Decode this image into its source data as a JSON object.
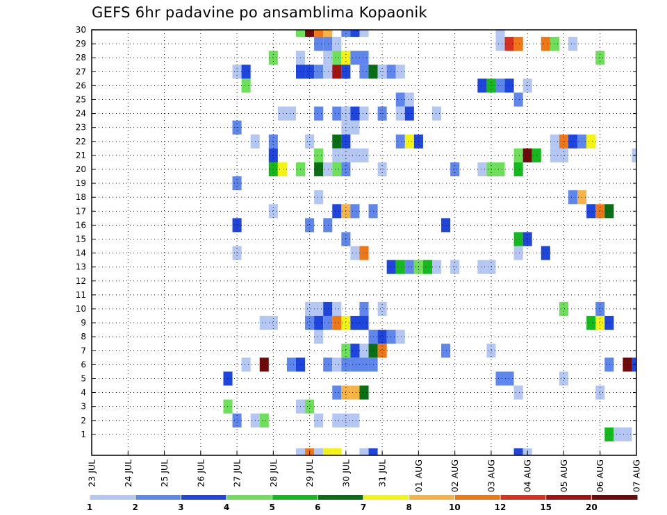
{
  "chart_data": {
    "type": "heatmap",
    "title": "GEFS 6hr padavine po ansamblima Kopaonik",
    "xlabel": "",
    "ylabel": "",
    "x_tick_labels": [
      "23 JUL",
      "24 JUL",
      "25 JUL",
      "26 JUL",
      "27 JUL",
      "28 JUL",
      "29 JUL",
      "30 JUL",
      "31 JUL",
      "01 AUG",
      "02 AUG",
      "03 AUG",
      "04 AUG",
      "05 AUG",
      "06 AUG",
      "07 AUG"
    ],
    "x_range_steps": [
      0,
      60
    ],
    "y_tick_labels": [
      "1",
      "2",
      "3",
      "4",
      "5",
      "6",
      "7",
      "8",
      "9",
      "10",
      "11",
      "12",
      "13",
      "14",
      "15",
      "16",
      "17",
      "18",
      "19",
      "20",
      "21",
      "22",
      "23",
      "24",
      "25",
      "26",
      "27",
      "28",
      "29",
      "30"
    ],
    "y_range": [
      0,
      30
    ],
    "grid": true,
    "colorbar": {
      "ticks": [
        "1",
        "2",
        "3",
        "4",
        "5",
        "6",
        "7",
        "8",
        "10",
        "12",
        "15",
        "20"
      ],
      "colors": [
        "#b4c6f2",
        "#5f86eb",
        "#1e46dc",
        "#6edf5a",
        "#14b91e",
        "#0a6e14",
        "#f4f414",
        "#f7b446",
        "#f07814",
        "#d7321e",
        "#a01414",
        "#6e0a0a"
      ]
    },
    "cells": [
      {
        "t": 23,
        "m": 30,
        "c": 3
      },
      {
        "t": 24,
        "m": 30,
        "c": 11
      },
      {
        "t": 25,
        "m": 30,
        "c": 8
      },
      {
        "t": 26,
        "m": 30,
        "c": 7
      },
      {
        "t": 28,
        "m": 30,
        "c": 1
      },
      {
        "t": 29,
        "m": 30,
        "c": 2
      },
      {
        "t": 30,
        "m": 30,
        "c": 0
      },
      {
        "t": 45,
        "m": 30,
        "c": 0
      },
      {
        "t": 25,
        "m": 29,
        "c": 1
      },
      {
        "t": 26,
        "m": 29,
        "c": 1
      },
      {
        "t": 27,
        "m": 29,
        "c": 0
      },
      {
        "t": 45,
        "m": 29,
        "c": 0
      },
      {
        "t": 46,
        "m": 29,
        "c": 9
      },
      {
        "t": 47,
        "m": 29,
        "c": 8
      },
      {
        "t": 50,
        "m": 29,
        "c": 8
      },
      {
        "t": 51,
        "m": 29,
        "c": 3
      },
      {
        "t": 53,
        "m": 29,
        "c": 0
      },
      {
        "t": 20,
        "m": 28,
        "c": 3
      },
      {
        "t": 23,
        "m": 28,
        "c": 0
      },
      {
        "t": 26,
        "m": 28,
        "c": 0
      },
      {
        "t": 27,
        "m": 28,
        "c": 3
      },
      {
        "t": 28,
        "m": 28,
        "c": 6
      },
      {
        "t": 29,
        "m": 28,
        "c": 1
      },
      {
        "t": 30,
        "m": 28,
        "c": 1
      },
      {
        "t": 56,
        "m": 28,
        "c": 3
      },
      {
        "t": 16,
        "m": 27,
        "c": 0
      },
      {
        "t": 17,
        "m": 27,
        "c": 2
      },
      {
        "t": 23,
        "m": 27,
        "c": 2
      },
      {
        "t": 24,
        "m": 27,
        "c": 2
      },
      {
        "t": 25,
        "m": 27,
        "c": 1
      },
      {
        "t": 26,
        "m": 27,
        "c": 0
      },
      {
        "t": 27,
        "m": 27,
        "c": 10
      },
      {
        "t": 28,
        "m": 27,
        "c": 2
      },
      {
        "t": 30,
        "m": 27,
        "c": 1
      },
      {
        "t": 31,
        "m": 27,
        "c": 5
      },
      {
        "t": 32,
        "m": 27,
        "c": 0
      },
      {
        "t": 33,
        "m": 27,
        "c": 1
      },
      {
        "t": 34,
        "m": 27,
        "c": 0
      },
      {
        "t": 17,
        "m": 26,
        "c": 3
      },
      {
        "t": 43,
        "m": 26,
        "c": 2
      },
      {
        "t": 44,
        "m": 26,
        "c": 4
      },
      {
        "t": 45,
        "m": 26,
        "c": 1
      },
      {
        "t": 46,
        "m": 26,
        "c": 2
      },
      {
        "t": 48,
        "m": 26,
        "c": 0
      },
      {
        "t": 34,
        "m": 25,
        "c": 1
      },
      {
        "t": 35,
        "m": 25,
        "c": 0
      },
      {
        "t": 47,
        "m": 25,
        "c": 1
      },
      {
        "t": 21,
        "m": 24,
        "c": 0
      },
      {
        "t": 22,
        "m": 24,
        "c": 0
      },
      {
        "t": 25,
        "m": 24,
        "c": 1
      },
      {
        "t": 27,
        "m": 24,
        "c": 1
      },
      {
        "t": 28,
        "m": 24,
        "c": 0
      },
      {
        "t": 29,
        "m": 24,
        "c": 2
      },
      {
        "t": 30,
        "m": 24,
        "c": 0
      },
      {
        "t": 32,
        "m": 24,
        "c": 1
      },
      {
        "t": 34,
        "m": 24,
        "c": 0
      },
      {
        "t": 35,
        "m": 24,
        "c": 2
      },
      {
        "t": 38,
        "m": 24,
        "c": 0
      },
      {
        "t": 16,
        "m": 23,
        "c": 1
      },
      {
        "t": 28,
        "m": 23,
        "c": 0
      },
      {
        "t": 29,
        "m": 23,
        "c": 0
      },
      {
        "t": 18,
        "m": 22,
        "c": 0
      },
      {
        "t": 20,
        "m": 22,
        "c": 1
      },
      {
        "t": 24,
        "m": 22,
        "c": 0
      },
      {
        "t": 27,
        "m": 22,
        "c": 5
      },
      {
        "t": 28,
        "m": 22,
        "c": 2
      },
      {
        "t": 34,
        "m": 22,
        "c": 1
      },
      {
        "t": 35,
        "m": 22,
        "c": 6
      },
      {
        "t": 36,
        "m": 22,
        "c": 2
      },
      {
        "t": 51,
        "m": 22,
        "c": 0
      },
      {
        "t": 52,
        "m": 22,
        "c": 8
      },
      {
        "t": 53,
        "m": 22,
        "c": 2
      },
      {
        "t": 54,
        "m": 22,
        "c": 1
      },
      {
        "t": 55,
        "m": 22,
        "c": 6
      },
      {
        "t": 20,
        "m": 21,
        "c": 2
      },
      {
        "t": 25,
        "m": 21,
        "c": 3
      },
      {
        "t": 27,
        "m": 21,
        "c": 0
      },
      {
        "t": 28,
        "m": 21,
        "c": 0
      },
      {
        "t": 29,
        "m": 21,
        "c": 0
      },
      {
        "t": 30,
        "m": 21,
        "c": 0
      },
      {
        "t": 47,
        "m": 21,
        "c": 3
      },
      {
        "t": 48,
        "m": 21,
        "c": 11
      },
      {
        "t": 49,
        "m": 21,
        "c": 4
      },
      {
        "t": 51,
        "m": 21,
        "c": 0
      },
      {
        "t": 52,
        "m": 21,
        "c": 0
      },
      {
        "t": 60,
        "m": 21,
        "c": 0
      },
      {
        "t": 20,
        "m": 20,
        "c": 4
      },
      {
        "t": 21,
        "m": 20,
        "c": 6
      },
      {
        "t": 23,
        "m": 20,
        "c": 3
      },
      {
        "t": 25,
        "m": 20,
        "c": 5
      },
      {
        "t": 26,
        "m": 20,
        "c": 0
      },
      {
        "t": 27,
        "m": 20,
        "c": 3
      },
      {
        "t": 28,
        "m": 20,
        "c": 1
      },
      {
        "t": 32,
        "m": 20,
        "c": 0
      },
      {
        "t": 40,
        "m": 20,
        "c": 1
      },
      {
        "t": 43,
        "m": 20,
        "c": 0
      },
      {
        "t": 44,
        "m": 20,
        "c": 3
      },
      {
        "t": 45,
        "m": 20,
        "c": 3
      },
      {
        "t": 47,
        "m": 20,
        "c": 4
      },
      {
        "t": 16,
        "m": 19,
        "c": 1
      },
      {
        "t": 25,
        "m": 18,
        "c": 0
      },
      {
        "t": 53,
        "m": 18,
        "c": 1
      },
      {
        "t": 54,
        "m": 18,
        "c": 7
      },
      {
        "t": 20,
        "m": 17,
        "c": 0
      },
      {
        "t": 27,
        "m": 17,
        "c": 2
      },
      {
        "t": 28,
        "m": 17,
        "c": 7
      },
      {
        "t": 29,
        "m": 17,
        "c": 1
      },
      {
        "t": 31,
        "m": 17,
        "c": 1
      },
      {
        "t": 55,
        "m": 17,
        "c": 2
      },
      {
        "t": 56,
        "m": 17,
        "c": 8
      },
      {
        "t": 57,
        "m": 17,
        "c": 5
      },
      {
        "t": 16,
        "m": 16,
        "c": 2
      },
      {
        "t": 24,
        "m": 16,
        "c": 1
      },
      {
        "t": 26,
        "m": 16,
        "c": 1
      },
      {
        "t": 39,
        "m": 16,
        "c": 2
      },
      {
        "t": 28,
        "m": 15,
        "c": 1
      },
      {
        "t": 47,
        "m": 15,
        "c": 4
      },
      {
        "t": 48,
        "m": 15,
        "c": 2
      },
      {
        "t": 16,
        "m": 14,
        "c": 0
      },
      {
        "t": 29,
        "m": 14,
        "c": 0
      },
      {
        "t": 30,
        "m": 14,
        "c": 8
      },
      {
        "t": 47,
        "m": 14,
        "c": 0
      },
      {
        "t": 50,
        "m": 14,
        "c": 2
      },
      {
        "t": 33,
        "m": 13,
        "c": 2
      },
      {
        "t": 34,
        "m": 13,
        "c": 4
      },
      {
        "t": 35,
        "m": 13,
        "c": 1
      },
      {
        "t": 36,
        "m": 13,
        "c": 3
      },
      {
        "t": 37,
        "m": 13,
        "c": 4
      },
      {
        "t": 38,
        "m": 13,
        "c": 0
      },
      {
        "t": 40,
        "m": 13,
        "c": 0
      },
      {
        "t": 43,
        "m": 13,
        "c": 0
      },
      {
        "t": 44,
        "m": 13,
        "c": 0
      },
      {
        "t": 24,
        "m": 10,
        "c": 0
      },
      {
        "t": 25,
        "m": 10,
        "c": 0
      },
      {
        "t": 26,
        "m": 10,
        "c": 2
      },
      {
        "t": 27,
        "m": 10,
        "c": 0
      },
      {
        "t": 30,
        "m": 10,
        "c": 1
      },
      {
        "t": 32,
        "m": 10,
        "c": 0
      },
      {
        "t": 52,
        "m": 10,
        "c": 3
      },
      {
        "t": 56,
        "m": 10,
        "c": 1
      },
      {
        "t": 19,
        "m": 9,
        "c": 0
      },
      {
        "t": 20,
        "m": 9,
        "c": 0
      },
      {
        "t": 24,
        "m": 9,
        "c": 1
      },
      {
        "t": 25,
        "m": 9,
        "c": 2
      },
      {
        "t": 26,
        "m": 9,
        "c": 1
      },
      {
        "t": 27,
        "m": 9,
        "c": 8
      },
      {
        "t": 28,
        "m": 9,
        "c": 6
      },
      {
        "t": 29,
        "m": 9,
        "c": 2
      },
      {
        "t": 30,
        "m": 9,
        "c": 2
      },
      {
        "t": 55,
        "m": 9,
        "c": 4
      },
      {
        "t": 56,
        "m": 9,
        "c": 6
      },
      {
        "t": 57,
        "m": 9,
        "c": 2
      },
      {
        "t": 25,
        "m": 8,
        "c": 0
      },
      {
        "t": 31,
        "m": 8,
        "c": 1
      },
      {
        "t": 32,
        "m": 8,
        "c": 2
      },
      {
        "t": 33,
        "m": 8,
        "c": 1
      },
      {
        "t": 34,
        "m": 8,
        "c": 0
      },
      {
        "t": 28,
        "m": 7,
        "c": 3
      },
      {
        "t": 29,
        "m": 7,
        "c": 2
      },
      {
        "t": 30,
        "m": 7,
        "c": 0
      },
      {
        "t": 31,
        "m": 7,
        "c": 5
      },
      {
        "t": 32,
        "m": 7,
        "c": 8
      },
      {
        "t": 39,
        "m": 7,
        "c": 1
      },
      {
        "t": 44,
        "m": 7,
        "c": 0
      },
      {
        "t": 17,
        "m": 6,
        "c": 0
      },
      {
        "t": 19,
        "m": 6,
        "c": 11
      },
      {
        "t": 22,
        "m": 6,
        "c": 1
      },
      {
        "t": 23,
        "m": 6,
        "c": 2
      },
      {
        "t": 26,
        "m": 6,
        "c": 1
      },
      {
        "t": 27,
        "m": 6,
        "c": 0
      },
      {
        "t": 28,
        "m": 6,
        "c": 1
      },
      {
        "t": 29,
        "m": 6,
        "c": 1
      },
      {
        "t": 30,
        "m": 6,
        "c": 1
      },
      {
        "t": 31,
        "m": 6,
        "c": 1
      },
      {
        "t": 57,
        "m": 6,
        "c": 1
      },
      {
        "t": 59,
        "m": 6,
        "c": 11
      },
      {
        "t": 60,
        "m": 6,
        "c": 2
      },
      {
        "t": 15,
        "m": 5,
        "c": 2
      },
      {
        "t": 45,
        "m": 5,
        "c": 1
      },
      {
        "t": 46,
        "m": 5,
        "c": 1
      },
      {
        "t": 52,
        "m": 5,
        "c": 0
      },
      {
        "t": 27,
        "m": 4,
        "c": 1
      },
      {
        "t": 28,
        "m": 4,
        "c": 7
      },
      {
        "t": 29,
        "m": 4,
        "c": 7
      },
      {
        "t": 30,
        "m": 4,
        "c": 5
      },
      {
        "t": 47,
        "m": 4,
        "c": 0
      },
      {
        "t": 56,
        "m": 4,
        "c": 0
      },
      {
        "t": 15,
        "m": 3,
        "c": 3
      },
      {
        "t": 23,
        "m": 3,
        "c": 0
      },
      {
        "t": 24,
        "m": 3,
        "c": 3
      },
      {
        "t": 16,
        "m": 2,
        "c": 1
      },
      {
        "t": 18,
        "m": 2,
        "c": 0
      },
      {
        "t": 19,
        "m": 2,
        "c": 3
      },
      {
        "t": 25,
        "m": 2,
        "c": 0
      },
      {
        "t": 27,
        "m": 2,
        "c": 0
      },
      {
        "t": 28,
        "m": 2,
        "c": 0
      },
      {
        "t": 29,
        "m": 2,
        "c": 0
      },
      {
        "t": 57,
        "m": 1,
        "c": 4
      },
      {
        "t": 58,
        "m": 1,
        "c": 0
      },
      {
        "t": 59,
        "m": 1,
        "c": 0
      },
      {
        "t": 23,
        "m": 0,
        "c": 0
      },
      {
        "t": 24,
        "m": 0,
        "c": 8
      },
      {
        "t": 25,
        "m": 0,
        "c": 0
      },
      {
        "t": 26,
        "m": 0,
        "c": 6
      },
      {
        "t": 27,
        "m": 0,
        "c": 6
      },
      {
        "t": 30,
        "m": 0,
        "c": 0
      },
      {
        "t": 31,
        "m": 0,
        "c": 2
      },
      {
        "t": 47,
        "m": 0,
        "c": 2
      },
      {
        "t": 48,
        "m": 0,
        "c": 0
      }
    ]
  }
}
